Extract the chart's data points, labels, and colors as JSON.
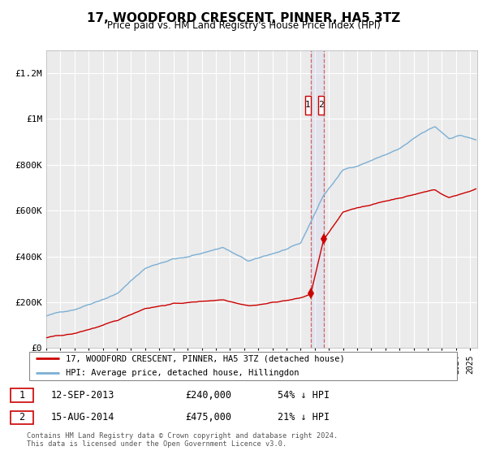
{
  "title": "17, WOODFORD CRESCENT, PINNER, HA5 3TZ",
  "subtitle": "Price paid vs. HM Land Registry's House Price Index (HPI)",
  "ylim": [
    0,
    1300000
  ],
  "xlim_start": 1995.0,
  "xlim_end": 2025.5,
  "yticks": [
    0,
    200000,
    400000,
    600000,
    800000,
    1000000,
    1200000
  ],
  "ytick_labels": [
    "£0",
    "£200K",
    "£400K",
    "£600K",
    "£800K",
    "£1M",
    "£1.2M"
  ],
  "legend_entry1": "17, WOODFORD CRESCENT, PINNER, HA5 3TZ (detached house)",
  "legend_entry2": "HPI: Average price, detached house, Hillingdon",
  "transaction1_date": 2013.71,
  "transaction1_price": 240000,
  "transaction2_date": 2014.62,
  "transaction2_price": 475000,
  "footer1": "Contains HM Land Registry data © Crown copyright and database right 2024.",
  "footer2": "This data is licensed under the Open Government Licence v3.0.",
  "table_row1": [
    "1",
    "12-SEP-2013",
    "£240,000",
    "54% ↓ HPI"
  ],
  "table_row2": [
    "2",
    "15-AUG-2014",
    "£475,000",
    "21% ↓ HPI"
  ],
  "red_line_color": "#cc0000",
  "blue_line_color": "#7bafd4",
  "bg_color": "#ebebeb",
  "grid_color": "#ffffff"
}
